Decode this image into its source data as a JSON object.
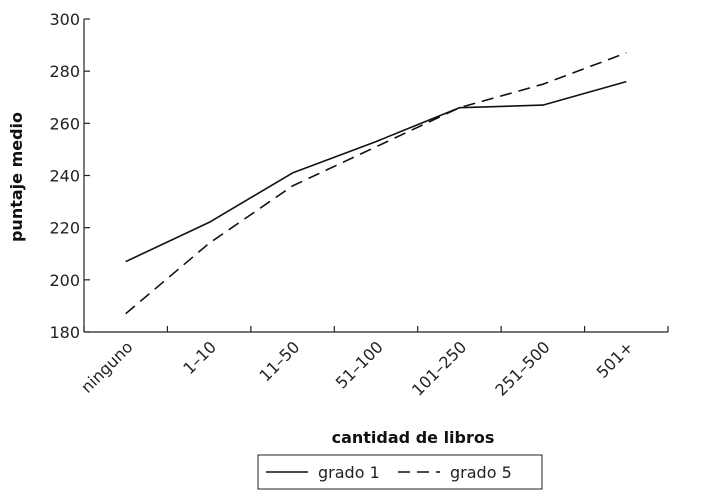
{
  "chart_data": {
    "type": "line",
    "title": "",
    "xlabel": "cantidad de libros",
    "ylabel": "puntaje medio",
    "categories": [
      "ninguno",
      "1–10",
      "11–50",
      "51–100",
      "101–250",
      "251–500",
      "501+"
    ],
    "ylim": [
      180,
      300
    ],
    "yticks": [
      180,
      200,
      220,
      240,
      260,
      280,
      300
    ],
    "grid": false,
    "legend_position": "bottom",
    "series": [
      {
        "name": "grado 1",
        "style": "solid",
        "color": "#111111",
        "values": [
          207,
          222,
          241,
          253,
          266,
          267,
          276
        ]
      },
      {
        "name": "grado 5",
        "style": "dashed",
        "color": "#111111",
        "values": [
          187,
          214,
          236,
          251,
          266,
          275,
          287
        ]
      }
    ]
  }
}
